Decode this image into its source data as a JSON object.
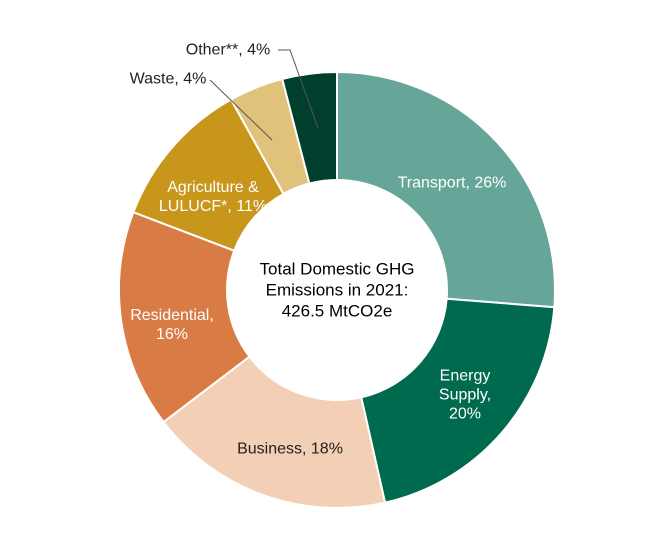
{
  "chart_data": {
    "type": "donut",
    "center_text": "Total Domestic GHG Emissions in 2021: 426.5 MtCO2e",
    "values": [
      26,
      20,
      18,
      16,
      11,
      4,
      4
    ],
    "value_labels": [
      "Transport, 26%",
      "Energy Supply, 20%",
      "Business, 18%",
      "Residential, 16%",
      "Agriculture & LULUCF*, 11%",
      "Waste, 4%",
      "Other**, 4%"
    ],
    "colors": [
      "#66a699",
      "#006a4e",
      "#f2cfb5",
      "#d97b45",
      "#c8961b",
      "#e1c27a",
      "#003f2e"
    ]
  }
}
